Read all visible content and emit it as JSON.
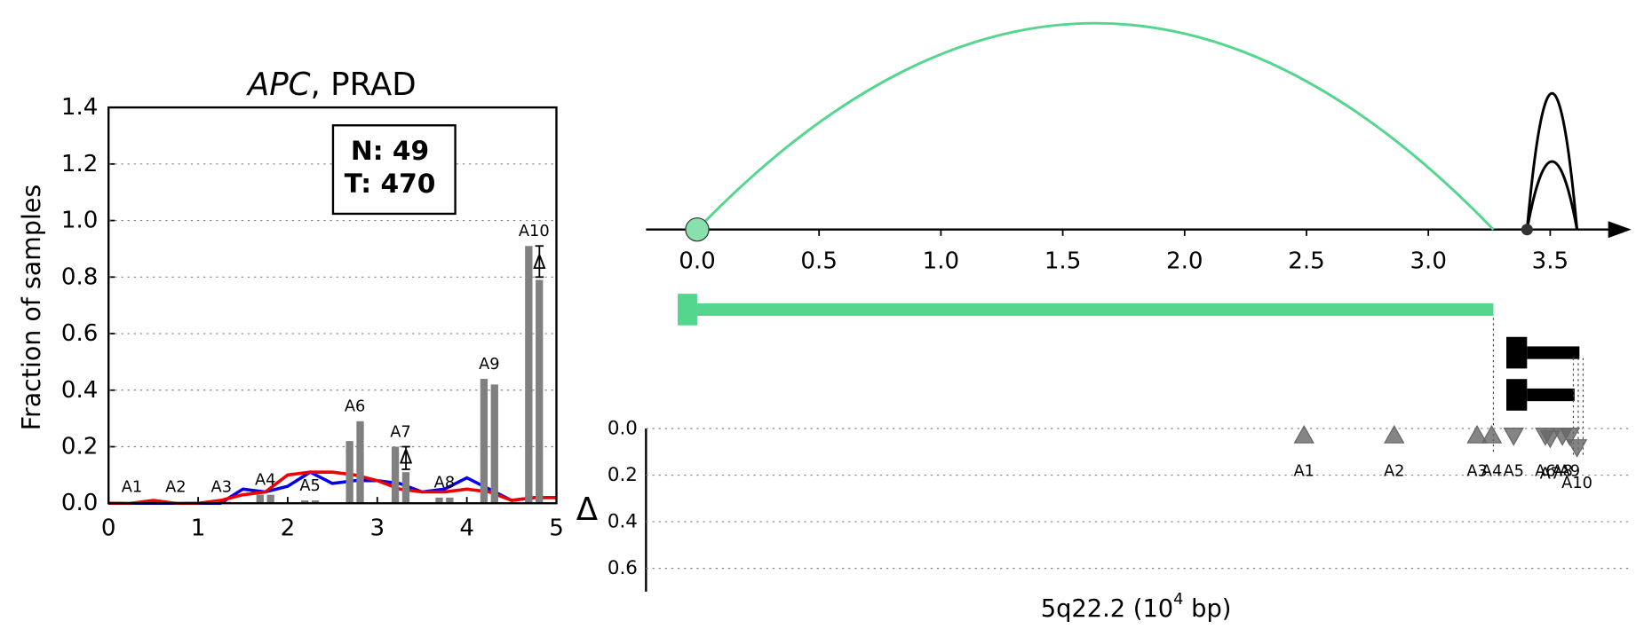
{
  "chart_data": [
    {
      "type": "bar",
      "title_gene": "APC",
      "title_rest": ", PRAD",
      "ylabel": "Fraction of samples",
      "xlim": [
        0,
        5
      ],
      "xticks": [
        0,
        1,
        2,
        3,
        4,
        5
      ],
      "ylim": [
        0,
        1.4
      ],
      "yticks": [
        {
          "value": 0,
          "label": "0.0"
        },
        0.2,
        0.4,
        0.6,
        0.8,
        {
          "value": 1,
          "label": "1.0"
        },
        1.2,
        1.4
      ],
      "grid": true,
      "box_text": [
        "N: 49",
        "T: 470"
      ],
      "categories": [
        "A1",
        "A2",
        "A3",
        "A4",
        "A5",
        "A6",
        "A7",
        "A8",
        "A9",
        "A10"
      ],
      "x": [
        0.26,
        0.75,
        1.26,
        1.75,
        2.25,
        2.75,
        3.26,
        3.75,
        4.25,
        4.75
      ],
      "series": [
        {
          "color": "#808080",
          "values": [
            0.005,
            0.005,
            0.005,
            0.03,
            0.01,
            0.22,
            0.2,
            0.02,
            0.44,
            0.91
          ]
        },
        {
          "color": "#808080",
          "values": [
            0.005,
            0.005,
            0.005,
            0.03,
            0.01,
            0.29,
            0.11,
            0.02,
            0.42,
            0.79
          ]
        }
      ],
      "lines": [
        {
          "color": "#0000ee",
          "x": [
            0,
            0.25,
            0.5,
            0.75,
            1,
            1.25,
            1.5,
            1.75,
            2,
            2.25,
            2.5,
            2.75,
            3,
            3.25,
            3.5,
            3.75,
            4,
            4.25,
            4.5,
            4.75,
            5
          ],
          "values": [
            0,
            0,
            0,
            0,
            0,
            0,
            0.05,
            0.04,
            0.06,
            0.11,
            0.07,
            0.08,
            0.08,
            0.07,
            0.04,
            0.05,
            0.09,
            0.05,
            0.01,
            0.02,
            0.02
          ]
        },
        {
          "color": "#ee0000",
          "x": [
            0,
            0.25,
            0.5,
            0.75,
            1,
            1.25,
            1.5,
            1.75,
            2,
            2.25,
            2.5,
            2.75,
            3,
            3.25,
            3.5,
            3.75,
            4,
            4.25,
            4.5,
            4.75,
            5
          ],
          "values": [
            0,
            0,
            0.01,
            0,
            0,
            0.01,
            0.03,
            0.04,
            0.1,
            0.11,
            0.11,
            0.1,
            0.08,
            0.05,
            0.04,
            0.04,
            0.05,
            0.04,
            0.01,
            0.02,
            0.02
          ]
        }
      ],
      "deltas": [
        {
          "text": "Δ",
          "x": 3.32,
          "y": 0.16,
          "err": [
            0.12,
            0.2
          ]
        },
        {
          "text": "Δ",
          "x": 4.81,
          "y": 0.85,
          "err": [
            0.8,
            0.91
          ]
        }
      ]
    },
    {
      "type": "sashimi",
      "xlim": [
        -0.21,
        3.82
      ],
      "xticks": [
        {
          "value": 0,
          "label": "0.0"
        },
        0.5,
        {
          "value": 1,
          "label": "1.0"
        },
        1.5,
        {
          "value": 2,
          "label": "2.0"
        },
        2.5,
        {
          "value": 3,
          "label": "3.0"
        },
        3.5
      ],
      "arcs": [
        {
          "start": 0,
          "end": 3.267,
          "height": 1,
          "color": "#55d68f"
        },
        {
          "start": 3.405,
          "end": 3.61,
          "height": 0.66,
          "color": "#000000"
        },
        {
          "start": 3.405,
          "end": 3.61,
          "height": 0.33,
          "color": "#000000"
        }
      ],
      "sites": [
        {
          "x": 0,
          "color": "#88e0ac"
        },
        {
          "x": 3.405,
          "color": "#333333"
        }
      ],
      "transcripts": [
        {
          "start": 0,
          "end": 3.267,
          "box_start": -0.08,
          "box_end": 0,
          "color": "#55d68f"
        },
        {
          "start": 3.405,
          "end": 3.62,
          "box_start": 3.32,
          "box_end": 3.405,
          "color": "#000000"
        },
        {
          "start": 3.405,
          "end": 3.6,
          "box_start": 3.32,
          "box_end": 3.405,
          "color": "#000000"
        }
      ],
      "guides": [
        3.267,
        3.595,
        3.615,
        3.635
      ],
      "delta": {
        "ylabel": "Δ",
        "ylim": [
          0,
          0.7
        ],
        "yticks": [
          {
            "value": 0,
            "label": "0.0"
          },
          0.2,
          0.4,
          0.6
        ],
        "grid": true,
        "categories": [
          "A1",
          "A2",
          "A3",
          "A4",
          "A5",
          "A6",
          "A7",
          "A8",
          "A9",
          "A10"
        ],
        "x": [
          2.49,
          2.86,
          3.2,
          3.26,
          3.35,
          3.48,
          3.5,
          3.55,
          3.58,
          3.61
        ],
        "values": [
          0.03,
          0.03,
          0.03,
          0.03,
          0.03,
          0.03,
          0.04,
          0.03,
          0.03,
          0.08
        ],
        "markers": [
          "^",
          "^",
          "^",
          "^",
          "v",
          "v",
          "v",
          "v",
          "v",
          "v"
        ],
        "color": "#666666"
      },
      "xlabel": "5q22.2 (10",
      "xlabel_exp": "4",
      "xlabel_end": " bp)"
    }
  ]
}
